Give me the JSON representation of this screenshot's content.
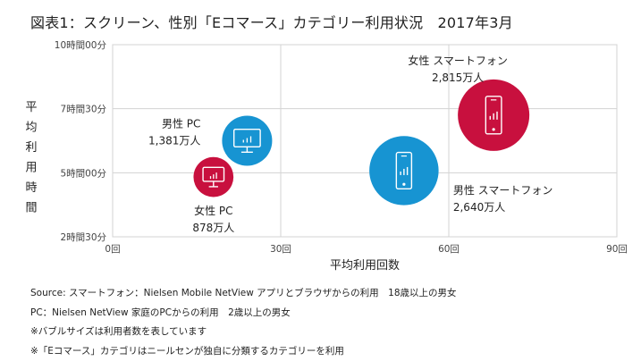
{
  "title": "図表1：スクリーン、性別「Eコマース」カテゴリー利用状況　2017年3月",
  "chart_data": {
    "type": "bubble",
    "title": "図表1：スクリーン、性別「Eコマース」カテゴリー利用状況　2017年3月",
    "xlabel": "平均利用回数",
    "ylabel": "平均利用時間",
    "xlim": [
      0,
      90
    ],
    "ylim_minutes": [
      150,
      600
    ],
    "x_ticks": [
      "0回",
      "30回",
      "60回",
      "90回"
    ],
    "x_tick_values": [
      0,
      30,
      60,
      90
    ],
    "y_ticks": [
      "2時間30分",
      "5時間00分",
      "7時間30分",
      "10時間00分"
    ],
    "y_tick_values_minutes": [
      150,
      300,
      450,
      600
    ],
    "grid": true,
    "series": [
      {
        "label_line1": "女性 スマートフォン",
        "label_line2": "2,815万人",
        "users_10k": 2815,
        "x": 68,
        "y_minutes": 435,
        "color": "#c8103e",
        "icon": "smartphone-icon"
      },
      {
        "label_line1": "男性 スマートフォン",
        "label_line2": "2,640万人",
        "users_10k": 2640,
        "x": 52,
        "y_minutes": 305,
        "color": "#1794d2",
        "icon": "smartphone-icon"
      },
      {
        "label_line1": "男性 PC",
        "label_line2": "1,381万人",
        "users_10k": 1381,
        "x": 24,
        "y_minutes": 375,
        "color": "#1794d2",
        "icon": "monitor-icon"
      },
      {
        "label_line1": "女性 PC",
        "label_line2": "878万人",
        "users_10k": 878,
        "x": 18,
        "y_minutes": 290,
        "color": "#c8103e",
        "icon": "monitor-icon"
      }
    ]
  },
  "notes": [
    "Source:  スマートフォン：Nielsen Mobile NetView アプリとブラウザからの利用　18歳以上の男女",
    "PC：Nielsen NetView 家庭のPCからの利用　2歳以上の男女",
    "※バブルサイズは利用者数を表しています",
    "※「Eコマース」カテゴリはニールセンが独自に分類するカテゴリーを利用"
  ]
}
